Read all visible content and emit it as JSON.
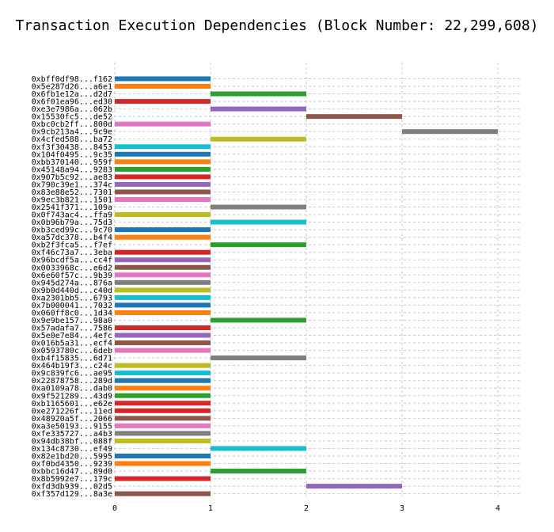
{
  "chart_data": {
    "type": "bar",
    "orientation": "horizontal-gantt",
    "title": "Transaction Execution Dependencies (Block Number: 22,299,608)",
    "xlabel": "",
    "ylabel": "",
    "xlim": [
      0,
      4.25
    ],
    "xticks": [
      0,
      1,
      2,
      3,
      4
    ],
    "grid": true,
    "series": [
      {
        "label": "0xbff0df98...f162",
        "start": 0,
        "end": 1,
        "color": "#1f77b4"
      },
      {
        "label": "0x5e287d26...a6e1",
        "start": 0,
        "end": 1,
        "color": "#ff7f0e"
      },
      {
        "label": "0x6fb1e12a...d2d7",
        "start": 1,
        "end": 2,
        "color": "#2ca02c"
      },
      {
        "label": "0x6f01ea96...ed30",
        "start": 0,
        "end": 1,
        "color": "#d62728"
      },
      {
        "label": "0xe3e7986a...062b",
        "start": 1,
        "end": 2,
        "color": "#9467bd"
      },
      {
        "label": "0x15530fc5...de52",
        "start": 2,
        "end": 3,
        "color": "#8c564b"
      },
      {
        "label": "0xbc0cb2ff...800d",
        "start": 0,
        "end": 1,
        "color": "#e377c2"
      },
      {
        "label": "0x9cb213a4...9c9e",
        "start": 3,
        "end": 4,
        "color": "#7f7f7f"
      },
      {
        "label": "0x4cfed588...ba72",
        "start": 1,
        "end": 2,
        "color": "#bcbd22"
      },
      {
        "label": "0xf3f30438...8453",
        "start": 0,
        "end": 1,
        "color": "#17becf"
      },
      {
        "label": "0x104f0495...9c35",
        "start": 0,
        "end": 1,
        "color": "#1f77b4"
      },
      {
        "label": "0xbb370140...959f",
        "start": 0,
        "end": 1,
        "color": "#ff7f0e"
      },
      {
        "label": "0x45148a94...9283",
        "start": 0,
        "end": 1,
        "color": "#2ca02c"
      },
      {
        "label": "0x907b5c92...ae83",
        "start": 0,
        "end": 1,
        "color": "#d62728"
      },
      {
        "label": "0x790c39e1...374c",
        "start": 0,
        "end": 1,
        "color": "#9467bd"
      },
      {
        "label": "0x83e88e52...7301",
        "start": 0,
        "end": 1,
        "color": "#8c564b"
      },
      {
        "label": "0x9ec3b821...1501",
        "start": 0,
        "end": 1,
        "color": "#e377c2"
      },
      {
        "label": "0x2541f371...109a",
        "start": 1,
        "end": 2,
        "color": "#7f7f7f"
      },
      {
        "label": "0x0f743ac4...ffa9",
        "start": 0,
        "end": 1,
        "color": "#bcbd22"
      },
      {
        "label": "0x0b96b79a...75d3",
        "start": 1,
        "end": 2,
        "color": "#17becf"
      },
      {
        "label": "0xb3ced99c...9c70",
        "start": 0,
        "end": 1,
        "color": "#1f77b4"
      },
      {
        "label": "0xa57dc378...b4f4",
        "start": 0,
        "end": 1,
        "color": "#ff7f0e"
      },
      {
        "label": "0xb2f3fca5...f7ef",
        "start": 1,
        "end": 2,
        "color": "#2ca02c"
      },
      {
        "label": "0xf46c73a7...3eba",
        "start": 0,
        "end": 1,
        "color": "#d62728"
      },
      {
        "label": "0x96bcdf5a...cc4f",
        "start": 0,
        "end": 1,
        "color": "#9467bd"
      },
      {
        "label": "0x0033968c...e6d2",
        "start": 0,
        "end": 1,
        "color": "#8c564b"
      },
      {
        "label": "0x6e60f57c...9b39",
        "start": 0,
        "end": 1,
        "color": "#e377c2"
      },
      {
        "label": "0x945d274a...876a",
        "start": 0,
        "end": 1,
        "color": "#7f7f7f"
      },
      {
        "label": "0x9b0d440d...c40d",
        "start": 0,
        "end": 1,
        "color": "#bcbd22"
      },
      {
        "label": "0xa2301bb5...6793",
        "start": 0,
        "end": 1,
        "color": "#17becf"
      },
      {
        "label": "0x7b000041...7032",
        "start": 0,
        "end": 1,
        "color": "#1f77b4"
      },
      {
        "label": "0x060ff8c0...1d34",
        "start": 0,
        "end": 1,
        "color": "#ff7f0e"
      },
      {
        "label": "0x9e9be157...98a0",
        "start": 1,
        "end": 2,
        "color": "#2ca02c"
      },
      {
        "label": "0x57adafa7...7586",
        "start": 0,
        "end": 1,
        "color": "#d62728"
      },
      {
        "label": "0x5e0e7e84...4efc",
        "start": 0,
        "end": 1,
        "color": "#9467bd"
      },
      {
        "label": "0x016b5a31...ecf4",
        "start": 0,
        "end": 1,
        "color": "#8c564b"
      },
      {
        "label": "0x0593780c...6deb",
        "start": 0,
        "end": 1,
        "color": "#e377c2"
      },
      {
        "label": "0xb4f15835...6d71",
        "start": 1,
        "end": 2,
        "color": "#7f7f7f"
      },
      {
        "label": "0x464b19f3...c24c",
        "start": 0,
        "end": 1,
        "color": "#bcbd22"
      },
      {
        "label": "0x9c839fc6...ae95",
        "start": 0,
        "end": 1,
        "color": "#17becf"
      },
      {
        "label": "0x22878758...289d",
        "start": 0,
        "end": 1,
        "color": "#1f77b4"
      },
      {
        "label": "0xa0109a78...dab0",
        "start": 0,
        "end": 1,
        "color": "#ff7f0e"
      },
      {
        "label": "0x9f521289...43d9",
        "start": 0,
        "end": 1,
        "color": "#2ca02c"
      },
      {
        "label": "0xb1165601...e62e",
        "start": 0,
        "end": 1,
        "color": "#d62728"
      },
      {
        "label": "0xe271226f...11ed",
        "start": 0,
        "end": 1,
        "color": "#d62728"
      },
      {
        "label": "0x48920a5f...2066",
        "start": 0,
        "end": 1,
        "color": "#8c564b"
      },
      {
        "label": "0xa3e50193...9155",
        "start": 0,
        "end": 1,
        "color": "#e377c2"
      },
      {
        "label": "0xfe335727...a4b3",
        "start": 0,
        "end": 1,
        "color": "#7f7f7f"
      },
      {
        "label": "0x94db38bf...088f",
        "start": 0,
        "end": 1,
        "color": "#bcbd22"
      },
      {
        "label": "0x134c8730...ef49",
        "start": 1,
        "end": 2,
        "color": "#17becf"
      },
      {
        "label": "0x82e1bd20...5995",
        "start": 0,
        "end": 1,
        "color": "#1f77b4"
      },
      {
        "label": "0xf0bd4350...9239",
        "start": 0,
        "end": 1,
        "color": "#ff7f0e"
      },
      {
        "label": "0xbbc16d47...89d0",
        "start": 1,
        "end": 2,
        "color": "#2ca02c"
      },
      {
        "label": "0x8b5992e7...179c",
        "start": 0,
        "end": 1,
        "color": "#d62728"
      },
      {
        "label": "0xfd3db939...02d5",
        "start": 2,
        "end": 3,
        "color": "#9467bd"
      },
      {
        "label": "0xf357d129...8a3e",
        "start": 0,
        "end": 1,
        "color": "#8c564b"
      }
    ]
  }
}
